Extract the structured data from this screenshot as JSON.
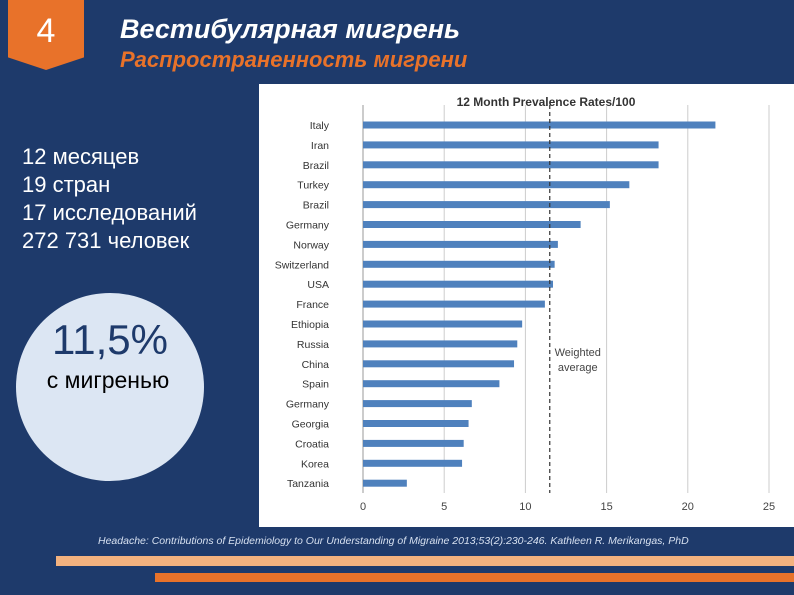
{
  "slide": {
    "number": "4",
    "title": "Вестибулярная мигрень",
    "subtitle": "Распространенность мигрени",
    "stats": [
      "12 месяцев",
      "19 стран",
      "17 исследований",
      "272 731 человек"
    ],
    "highlight_value": "11,5%",
    "highlight_label": "с мигренью",
    "citation": "Headache: Contributions of Epidemiology to Our Understanding of Migraine 2013;53(2):230-246. Kathleen R. Merikangas, PhD",
    "colors": {
      "background": "#1e3a6b",
      "accent_orange": "#e8722a",
      "light_orange": "#f3b27f",
      "bar_blue": "#4f81bd",
      "circle_fill": "#dce6f3"
    }
  },
  "chart_data": {
    "type": "bar",
    "orientation": "horizontal",
    "title": "12 Month Prevalence Rates/100",
    "categories": [
      "Italy",
      "Iran",
      "Brazil",
      "Turkey",
      "Brazil",
      "Germany",
      "Norway",
      "Switzerland",
      "USA",
      "France",
      "Ethiopia",
      "Russia",
      "China",
      "Spain",
      "Germany",
      "Georgia",
      "Croatia",
      "Korea",
      "Tanzania"
    ],
    "values": [
      21.7,
      18.2,
      18.2,
      16.4,
      15.2,
      13.4,
      12.0,
      11.8,
      11.7,
      11.2,
      9.8,
      9.5,
      9.3,
      8.4,
      6.7,
      6.5,
      6.2,
      6.1,
      2.7
    ],
    "xlim": [
      0,
      25
    ],
    "xticks": [
      "0",
      "5",
      "10",
      "15",
      "20",
      "25"
    ],
    "grid": true,
    "reference_line": {
      "value": 11.5,
      "label": "Weighted average"
    }
  }
}
